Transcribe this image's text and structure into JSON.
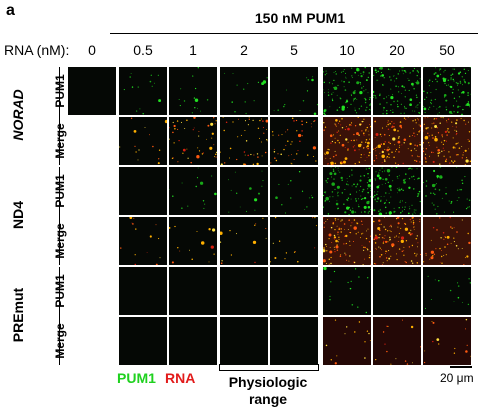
{
  "panel_label": "a",
  "condition_label": "150 nM PUM1",
  "rna_axis_label": "RNA (nM):",
  "concentrations": [
    "0",
    "0.5",
    "1",
    "2",
    "5",
    "10",
    "20",
    "50"
  ],
  "groups": [
    {
      "name": "NORAD",
      "italic": true,
      "rows": [
        "PUM1",
        "Merge"
      ]
    },
    {
      "name": "ND4",
      "italic": false,
      "rows": [
        "PUM1",
        "Merge"
      ]
    },
    {
      "name": "PREmut",
      "italic": false,
      "rows": [
        "PUM1",
        "Merge"
      ]
    }
  ],
  "legend": {
    "pum1": "PUM1",
    "rna": "RNA"
  },
  "physiologic_range_label": "Physiologic range",
  "scale_bar_label": "20 μm",
  "colors": {
    "pum1_green": "#1fd11f",
    "rna_red": "#e21b1b",
    "tile_background": "#050805"
  },
  "image_intensity": {
    "description_levels": "0 = none, 1 = sparse, 2 = moderate, 3 = dense",
    "NORAD": {
      "PUM1": [
        0,
        1,
        1,
        1,
        1,
        3,
        3,
        3
      ],
      "Merge": [
        null,
        1,
        2,
        2,
        2,
        3,
        3,
        3
      ]
    },
    "ND4": {
      "PUM1": [
        null,
        0,
        1,
        1,
        1,
        3,
        3,
        2
      ],
      "Merge": [
        null,
        1,
        1,
        1,
        1,
        3,
        3,
        2
      ]
    },
    "PREmut": {
      "PUM1": [
        null,
        0,
        0,
        0,
        0,
        1,
        0,
        1
      ],
      "Merge": [
        null,
        0,
        0,
        0,
        0,
        1,
        1,
        1
      ]
    }
  }
}
